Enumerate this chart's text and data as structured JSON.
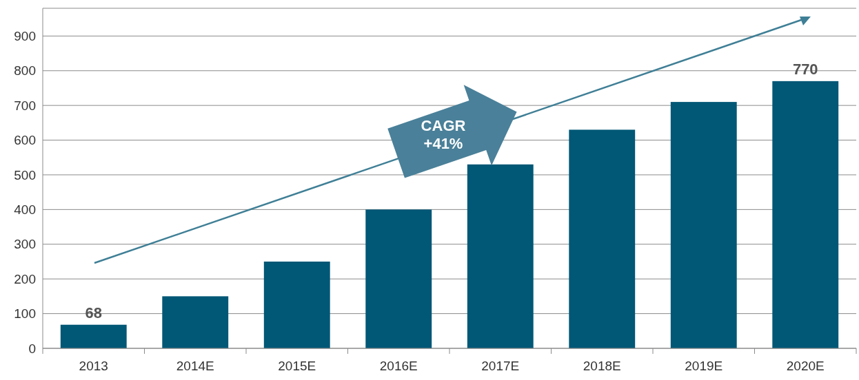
{
  "chart_data": {
    "type": "bar",
    "categories": [
      "2013",
      "2014E",
      "2015E",
      "2016E",
      "2017E",
      "2018E",
      "2019E",
      "2020E"
    ],
    "values": [
      68,
      150,
      250,
      400,
      530,
      630,
      710,
      770
    ],
    "value_labels": [
      "68",
      null,
      null,
      null,
      null,
      null,
      null,
      "770"
    ],
    "color": "#005776",
    "ylim": [
      0,
      980
    ],
    "yticks": [
      {
        "value": 0,
        "label": "0"
      },
      100,
      200,
      300,
      400,
      500,
      600,
      700,
      800,
      900
    ],
    "grid": "y",
    "annotations": [
      "CAGR +41%"
    ]
  }
}
